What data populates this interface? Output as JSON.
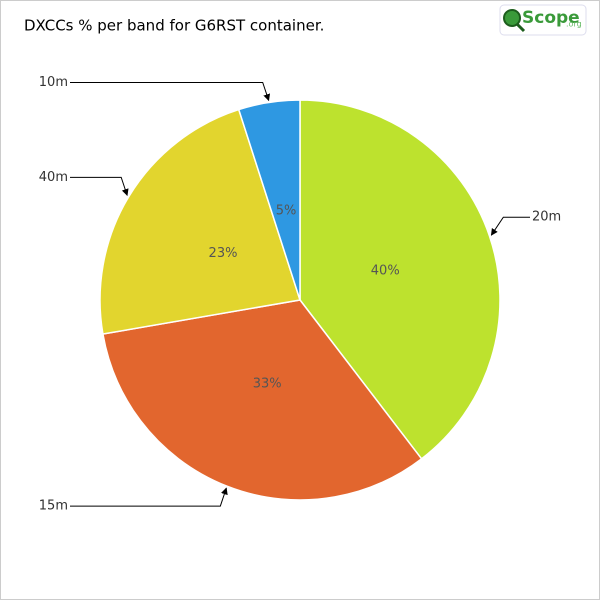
{
  "chart_data": {
    "type": "pie",
    "title": "DXCCs % per band for G6RST container.",
    "logo": {
      "name": "Scope",
      "suffix": ".org"
    },
    "categories": [
      "20m",
      "15m",
      "40m",
      "10m"
    ],
    "values": [
      40,
      33,
      23,
      5
    ],
    "value_labels": [
      "40%",
      "33%",
      "23%",
      "5%"
    ],
    "colors": [
      "#bde22e",
      "#e2662e",
      "#e2d52e",
      "#2e98e2"
    ]
  }
}
